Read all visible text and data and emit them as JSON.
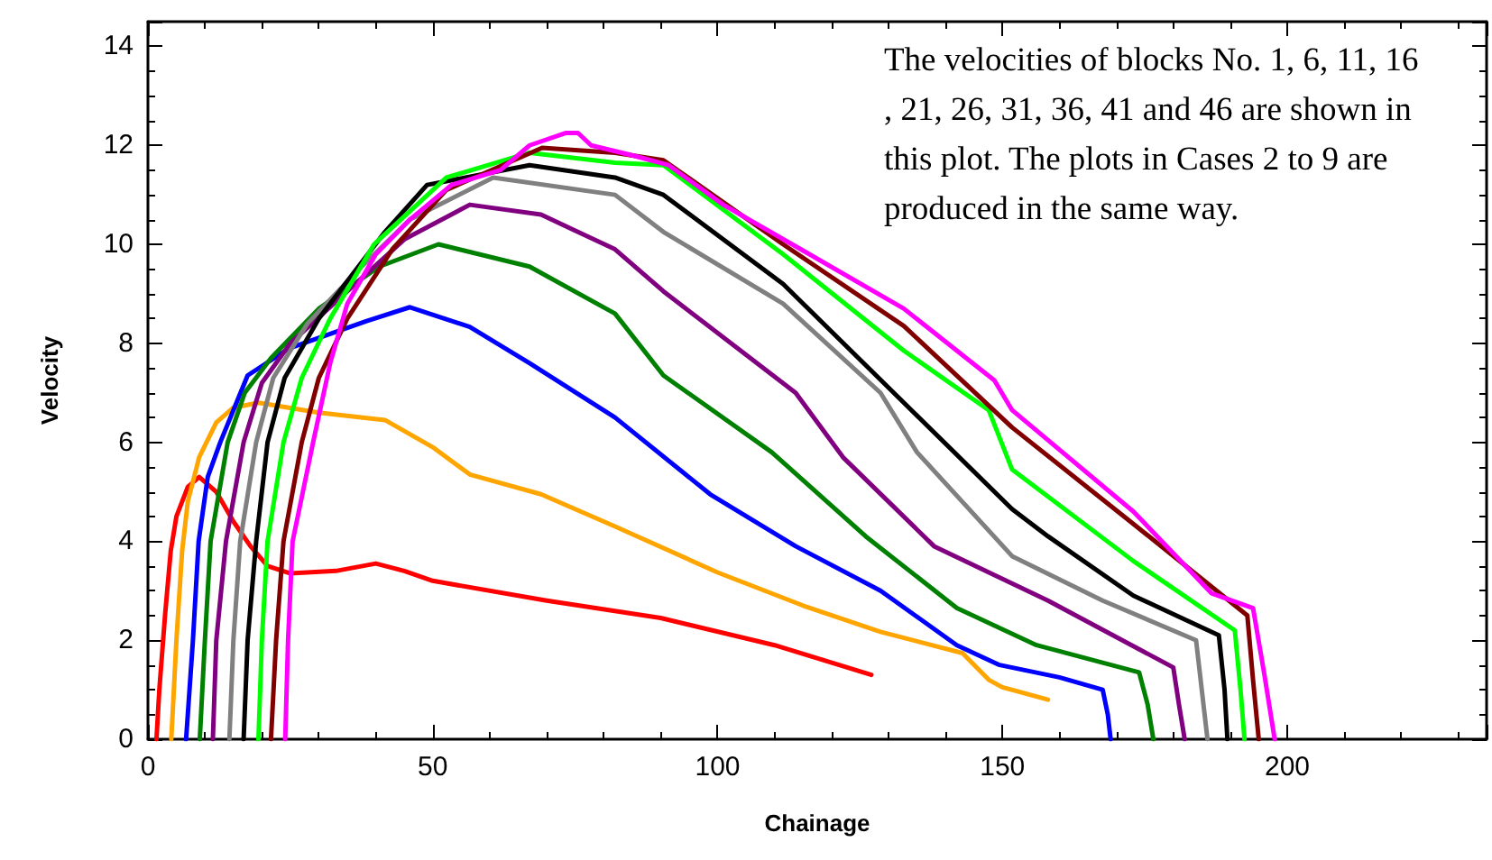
{
  "chart_data": {
    "type": "line",
    "xlabel": "Chainage",
    "ylabel": "Velocity",
    "xlim": [
      0,
      235
    ],
    "xticks": [
      0,
      50,
      100,
      150,
      200
    ],
    "ylim": [
      0,
      14.5
    ],
    "yticks": [
      0,
      2,
      4,
      6,
      8,
      10,
      12,
      14
    ],
    "grid": false,
    "marker": "none",
    "line_style": "solid",
    "annotations": [
      "The velocities of blocks No. 1, 6, 11, 16, 21, 26, 31, 36, 41 and 46 are shown in this plot. The plots in Cases 2 to 9 are produced in the same way."
    ],
    "series": [
      {
        "color": "#ff0000",
        "x": [
          1.5,
          2,
          3,
          4,
          5,
          7,
          9,
          12,
          15,
          18,
          21,
          25,
          33,
          40,
          45,
          50,
          70,
          90,
          110,
          127
        ],
        "values": [
          0,
          1,
          2.5,
          3.8,
          4.5,
          5.1,
          5.3,
          5,
          4.4,
          3.9,
          3.5,
          3.35,
          3.4,
          3.55,
          3.4,
          3.2,
          2.8,
          2.45,
          1.9,
          1.3
        ]
      },
      {
        "color": "#ffa500",
        "x": [
          4.1,
          5,
          6,
          7,
          9,
          12,
          15,
          19.4,
          30,
          41.6,
          50,
          56.5,
          69,
          82,
          100,
          115,
          128.6,
          143,
          147.6,
          150,
          158
        ],
        "values": [
          0,
          2,
          3.8,
          4.8,
          5.7,
          6.4,
          6.7,
          6.8,
          6.6,
          6.45,
          5.9,
          5.35,
          4.95,
          4.3,
          3.37,
          2.7,
          2.17,
          1.74,
          1.2,
          1.05,
          0.8
        ]
      },
      {
        "color": "#0000ff",
        "x": [
          6.7,
          7.9,
          8.9,
          10.5,
          12.7,
          17.5,
          24.8,
          38.4,
          46,
          56.5,
          67,
          82,
          98.7,
          113.7,
          128.6,
          142,
          149.5,
          160,
          167.6,
          168.5,
          169
        ],
        "values": [
          0,
          2,
          4,
          5.3,
          6,
          7.35,
          7.9,
          8.45,
          8.73,
          8.33,
          7.6,
          6.5,
          4.95,
          3.9,
          3,
          1.9,
          1.5,
          1.25,
          1,
          0.5,
          0
        ]
      },
      {
        "color": "#008000",
        "x": [
          9.1,
          10,
          11,
          14,
          17,
          21.6,
          30,
          40.6,
          51,
          67,
          82,
          90.5,
          109.5,
          126,
          142,
          156,
          174,
          175.5,
          176.5
        ],
        "values": [
          0,
          2,
          4,
          6,
          7,
          7.7,
          8.7,
          9.55,
          10,
          9.55,
          8.6,
          7.35,
          5.8,
          4.1,
          2.65,
          1.9,
          1.35,
          0.7,
          0
        ]
      },
      {
        "color": "#800080",
        "x": [
          11.4,
          12,
          13.7,
          16.8,
          20,
          25,
          35,
          45,
          56.5,
          69,
          82,
          90.5,
          113.7,
          122,
          138,
          158,
          180,
          181,
          182
        ],
        "values": [
          0,
          2,
          4,
          6,
          7.2,
          8,
          9.05,
          10.1,
          10.8,
          10.6,
          9.9,
          9.05,
          7,
          5.7,
          3.9,
          2.8,
          1.45,
          0.7,
          0
        ]
      },
      {
        "color": "#808080",
        "x": [
          14.3,
          15,
          16.2,
          19,
          22,
          28,
          37.5,
          46,
          60.6,
          82,
          90.5,
          111.5,
          128.6,
          135,
          151.7,
          167.6,
          184,
          185,
          186
        ],
        "values": [
          0,
          2,
          4,
          6,
          7.3,
          8.4,
          9.55,
          10.5,
          11.35,
          11,
          10.25,
          8.8,
          7,
          5.8,
          3.7,
          2.8,
          2,
          1,
          0
        ]
      },
      {
        "color": "#000000",
        "x": [
          16.8,
          17.5,
          19,
          21,
          24,
          30,
          41.6,
          49,
          67,
          82,
          90.5,
          111.5,
          132.7,
          151.7,
          158,
          173,
          188,
          189,
          189.5
        ],
        "values": [
          0,
          2,
          4,
          6,
          7.3,
          8.5,
          10.25,
          11.2,
          11.6,
          11.35,
          11,
          9.2,
          6.8,
          4.65,
          4.1,
          2.9,
          2.1,
          1,
          0
        ]
      },
      {
        "color": "#00ff00",
        "x": [
          19.4,
          20,
          21,
          23.8,
          27,
          32,
          39.7,
          52.4,
          67,
          82,
          90.5,
          111.5,
          132.7,
          147.6,
          151.7,
          173,
          190.8,
          191.8,
          192.5
        ],
        "values": [
          0,
          2,
          4,
          6,
          7.3,
          8.5,
          10,
          11.35,
          11.85,
          11.65,
          11.6,
          9.8,
          7.85,
          6.65,
          5.45,
          3.6,
          2.2,
          1,
          0
        ]
      },
      {
        "color": "#800000",
        "x": [
          21.6,
          22.5,
          23.8,
          27,
          30,
          35,
          42.9,
          52.4,
          69.2,
          82,
          90.5,
          111.5,
          132.7,
          151.7,
          173,
          193,
          194,
          195
        ],
        "values": [
          0,
          2,
          4,
          6,
          7.3,
          8.5,
          9.9,
          11.1,
          11.95,
          11.85,
          11.7,
          10,
          8.35,
          6.3,
          4.35,
          2.5,
          1.2,
          0
        ]
      },
      {
        "color": "#ff00ff",
        "x": [
          24.1,
          24.6,
          25.4,
          29,
          32,
          35,
          40,
          46,
          53.3,
          61.9,
          67,
          73.3,
          75.5,
          77.8,
          85,
          91.4,
          101,
          114.6,
          132.7,
          148.6,
          151.7,
          173,
          186.7,
          194,
          196,
          197.8
        ],
        "values": [
          0,
          2,
          4,
          6,
          7.6,
          8.8,
          9.8,
          10.5,
          11.2,
          11.5,
          12,
          12.25,
          12.25,
          12,
          11.8,
          11.6,
          10.8,
          9.9,
          8.7,
          7.25,
          6.65,
          4.6,
          2.95,
          2.65,
          1.3,
          0
        ]
      }
    ]
  }
}
